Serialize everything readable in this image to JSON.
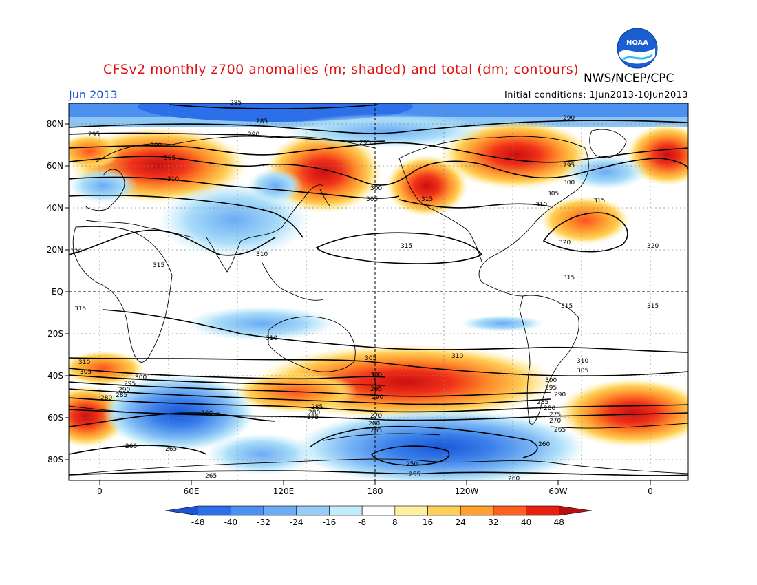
{
  "header": {
    "title": "CFSv2 monthly z700 anomalies (m; shaded) and total (dm; contours)",
    "org": "NWS/NCEP/CPC",
    "month": "Jun 2013",
    "initial_conditions": "Initial conditions: 1Jun2013-10Jun2013",
    "logo_text": "NOAA"
  },
  "axes": {
    "lat_labels": [
      "80N",
      "60N",
      "40N",
      "20N",
      "EQ",
      "20S",
      "40S",
      "60S",
      "80S"
    ],
    "lon_labels": [
      "0",
      "60E",
      "120E",
      "180",
      "120W",
      "60W",
      "0"
    ]
  },
  "colorbar": {
    "ticks": [
      "-48",
      "-40",
      "-32",
      "-24",
      "-16",
      "-8",
      "8",
      "16",
      "24",
      "32",
      "40",
      "48"
    ],
    "colors": [
      "#1a55d9",
      "#2b70e8",
      "#4d91f0",
      "#6cabf5",
      "#95ccf8",
      "#c2ecfa",
      "#ffffff",
      "#fff0a0",
      "#ffd055",
      "#ffa030",
      "#ff6020",
      "#e82010",
      "#b81010"
    ]
  },
  "contour_labels": [
    "285",
    "290",
    "295",
    "300",
    "305",
    "310",
    "315",
    "320",
    "250",
    "255",
    "260",
    "265",
    "270",
    "275",
    "280"
  ],
  "map_data": {
    "anomaly_centers": [
      {
        "lon": 45,
        "lat": 62,
        "anomaly": 40
      },
      {
        "lon": 155,
        "lat": 50,
        "anomaly": 32
      },
      {
        "lon": 210,
        "lat": 45,
        "anomaly": 40
      },
      {
        "lon": 275,
        "lat": 62,
        "anomaly": 40
      },
      {
        "lon": 320,
        "lat": 32,
        "anomaly": 24
      },
      {
        "lon": 185,
        "lat": -45,
        "anomaly": 48
      },
      {
        "lon": 350,
        "lat": -60,
        "anomaly": 40
      },
      {
        "lon": 225,
        "lat": -72,
        "anomaly": -48
      },
      {
        "lon": 40,
        "lat": -50,
        "anomaly": -32
      }
    ]
  }
}
